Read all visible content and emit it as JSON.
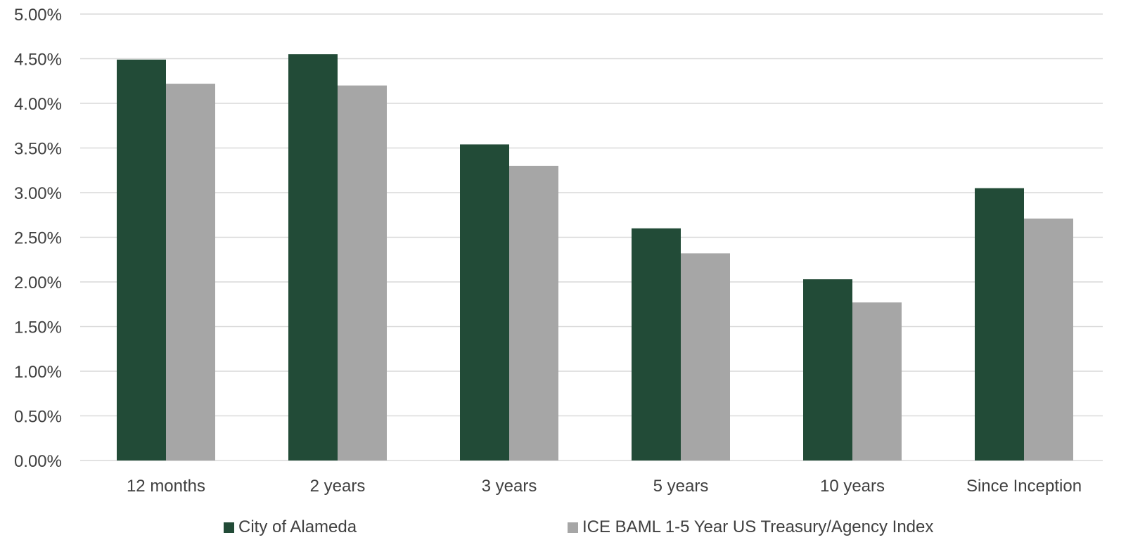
{
  "chart_data": {
    "type": "bar",
    "categories": [
      "12 months",
      "2 years",
      "3 years",
      "5 years",
      "10 years",
      "Since Inception"
    ],
    "series": [
      {
        "name": "City of Alameda",
        "color": "#224b37",
        "values": [
          4.49,
          4.55,
          3.54,
          2.6,
          2.03,
          3.05
        ]
      },
      {
        "name": "ICE BAML 1-5 Year US Treasury/Agency Index",
        "color": "#a6a6a6",
        "values": [
          4.22,
          4.2,
          3.3,
          2.32,
          1.77,
          2.71
        ]
      }
    ],
    "ylim": [
      0,
      5
    ],
    "yticks": [
      "0.00%",
      "0.50%",
      "1.00%",
      "1.50%",
      "2.00%",
      "2.50%",
      "3.00%",
      "3.50%",
      "4.00%",
      "4.50%",
      "5.00%"
    ],
    "ytick_values": [
      0,
      0.5,
      1,
      1.5,
      2,
      2.5,
      3,
      3.5,
      4,
      4.5,
      5
    ],
    "title": "",
    "xlabel": "",
    "ylabel": "",
    "grid": true,
    "legend": "bottom"
  }
}
